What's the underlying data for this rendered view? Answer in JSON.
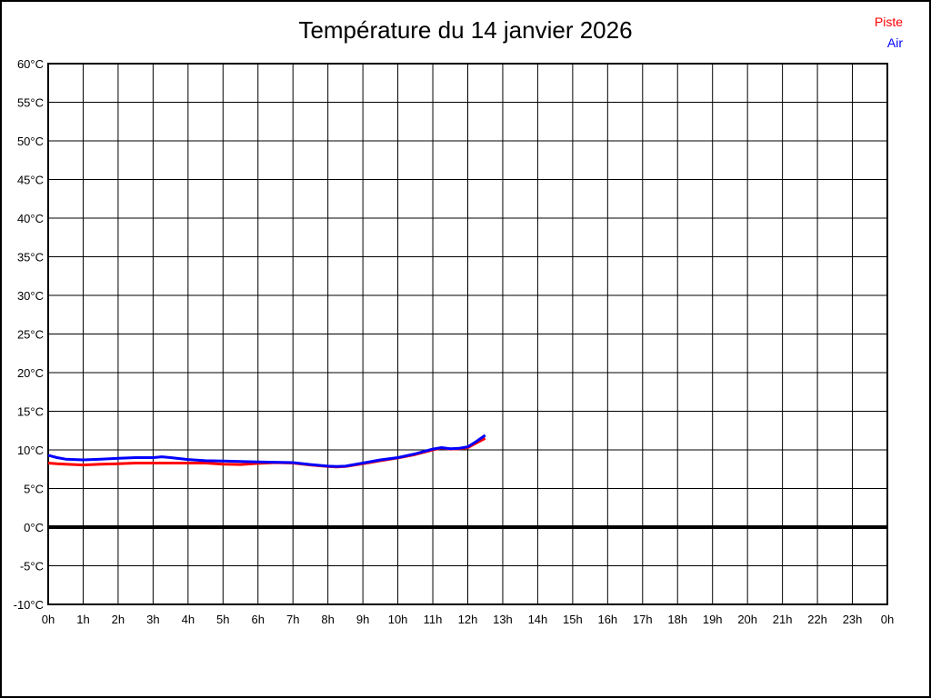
{
  "title": "Température du 14 janvier 2026",
  "legend": {
    "piste_label": "Piste",
    "air_label": "Air"
  },
  "colors": {
    "piste": "#ff0000",
    "air": "#0000ff",
    "grid": "#000000",
    "border": "#000000",
    "zero_line": "#000000",
    "background": "#ffffff",
    "text": "#000000"
  },
  "chart_data": {
    "type": "line",
    "title": "Température du 14 janvier 2026",
    "xlabel": "",
    "ylabel": "",
    "xlim": [
      0,
      24
    ],
    "ylim": [
      -10,
      60
    ],
    "x_tick_step_hours": 1,
    "y_tick_step_degrees": 5,
    "grid": true,
    "legend_position": "top-right",
    "x_tick_labels": [
      "0h",
      "1h",
      "2h",
      "3h",
      "4h",
      "5h",
      "6h",
      "7h",
      "8h",
      "9h",
      "10h",
      "11h",
      "12h",
      "13h",
      "14h",
      "15h",
      "16h",
      "17h",
      "18h",
      "19h",
      "20h",
      "21h",
      "22h",
      "23h",
      "0h"
    ],
    "y_tick_labels": [
      "60°C",
      "55°C",
      "50°C",
      "45°C",
      "40°C",
      "35°C",
      "30°C",
      "25°C",
      "20°C",
      "15°C",
      "10°C",
      "5°C",
      "0°C",
      "-5°C",
      "-10°C"
    ],
    "y_tick_values": [
      60,
      55,
      50,
      45,
      40,
      35,
      30,
      25,
      20,
      15,
      10,
      5,
      0,
      -5,
      -10
    ],
    "zero_line_value": 0,
    "series": [
      {
        "name": "Piste",
        "color": "#ff0000",
        "points": [
          [
            0,
            8.3
          ],
          [
            0.25,
            8.2
          ],
          [
            0.5,
            8.15
          ],
          [
            1,
            8.05
          ],
          [
            1.5,
            8.15
          ],
          [
            2,
            8.2
          ],
          [
            2.5,
            8.3
          ],
          [
            3,
            8.3
          ],
          [
            3.5,
            8.3
          ],
          [
            4,
            8.3
          ],
          [
            4.5,
            8.3
          ],
          [
            5,
            8.15
          ],
          [
            5.5,
            8.1
          ],
          [
            6,
            8.25
          ],
          [
            6.5,
            8.35
          ],
          [
            7,
            8.3
          ],
          [
            7.5,
            8.05
          ],
          [
            8,
            7.85
          ],
          [
            8.25,
            7.8
          ],
          [
            8.5,
            7.85
          ],
          [
            9,
            8.2
          ],
          [
            9.5,
            8.6
          ],
          [
            10,
            8.95
          ],
          [
            10.5,
            9.4
          ],
          [
            11,
            10.0
          ],
          [
            11.25,
            10.25
          ],
          [
            11.5,
            10.1
          ],
          [
            11.75,
            10.15
          ],
          [
            12,
            10.3
          ],
          [
            12.25,
            10.9
          ],
          [
            12.5,
            11.5
          ]
        ]
      },
      {
        "name": "Air",
        "color": "#0000ff",
        "points": [
          [
            0,
            9.3
          ],
          [
            0.25,
            9.0
          ],
          [
            0.5,
            8.8
          ],
          [
            1,
            8.7
          ],
          [
            1.5,
            8.8
          ],
          [
            2,
            8.9
          ],
          [
            2.5,
            9.0
          ],
          [
            3,
            9.0
          ],
          [
            3.25,
            9.1
          ],
          [
            3.5,
            9.0
          ],
          [
            4,
            8.75
          ],
          [
            4.5,
            8.6
          ],
          [
            5,
            8.55
          ],
          [
            5.5,
            8.5
          ],
          [
            6,
            8.45
          ],
          [
            6.5,
            8.4
          ],
          [
            7,
            8.35
          ],
          [
            7.5,
            8.1
          ],
          [
            8,
            7.9
          ],
          [
            8.25,
            7.85
          ],
          [
            8.5,
            7.9
          ],
          [
            9,
            8.3
          ],
          [
            9.5,
            8.7
          ],
          [
            10,
            9.0
          ],
          [
            10.5,
            9.5
          ],
          [
            11,
            10.1
          ],
          [
            11.25,
            10.3
          ],
          [
            11.5,
            10.15
          ],
          [
            11.75,
            10.2
          ],
          [
            12,
            10.4
          ],
          [
            12.25,
            11.1
          ],
          [
            12.5,
            11.9
          ]
        ]
      }
    ]
  }
}
